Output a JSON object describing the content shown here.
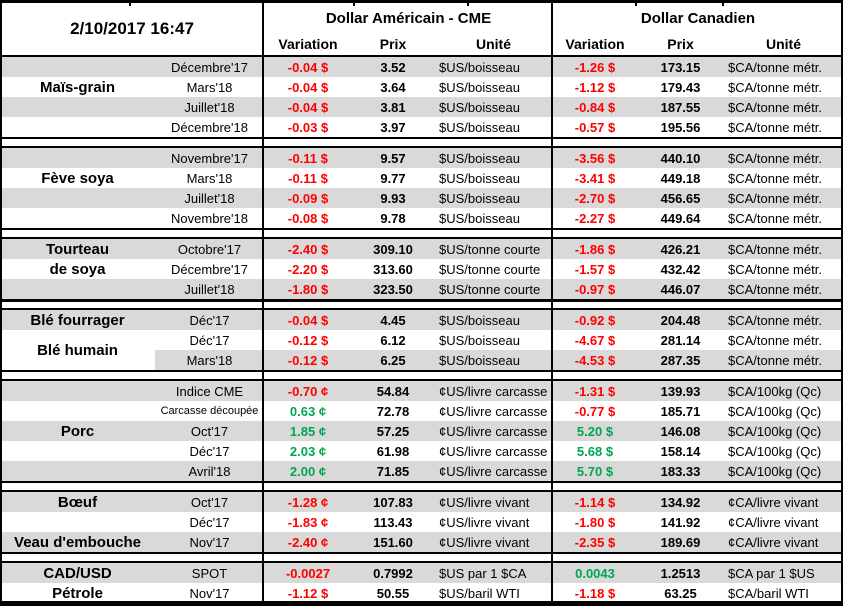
{
  "meta": {
    "timestamp": "2/10/2017 16:47"
  },
  "colors": {
    "negative": "#FF0000",
    "positive": "#00A651",
    "row_stripe": "#D9D9D9",
    "border": "#000000"
  },
  "header": {
    "us": {
      "title": "Dollar Américain - CME",
      "cols": [
        "Variation",
        "Prix",
        "Unité"
      ]
    },
    "ca": {
      "title": "Dollar Canadien",
      "cols": [
        "Variation",
        "Prix",
        "Unité"
      ]
    }
  },
  "groups": [
    {
      "name": "mais-grain",
      "rows": [
        {
          "cat": "",
          "contract": "Décembre'17",
          "us": {
            "var": "-0.04 $",
            "prix": "3.52",
            "unit": "$US/boisseau"
          },
          "ca": {
            "var": "-1.26 $",
            "prix": "173.15",
            "unit": "$CA/tonne métr."
          }
        },
        {
          "cat": "Maïs-grain",
          "contract": "Mars'18",
          "us": {
            "var": "-0.04 $",
            "prix": "3.64",
            "unit": "$US/boisseau"
          },
          "ca": {
            "var": "-1.12 $",
            "prix": "179.43",
            "unit": "$CA/tonne métr."
          }
        },
        {
          "cat": "",
          "contract": "Juillet'18",
          "us": {
            "var": "-0.04 $",
            "prix": "3.81",
            "unit": "$US/boisseau"
          },
          "ca": {
            "var": "-0.84 $",
            "prix": "187.55",
            "unit": "$CA/tonne métr."
          }
        },
        {
          "cat": "",
          "contract": "Décembre'18",
          "us": {
            "var": "-0.03 $",
            "prix": "3.97",
            "unit": "$US/boisseau"
          },
          "ca": {
            "var": "-0.57 $",
            "prix": "195.56",
            "unit": "$CA/tonne métr."
          }
        }
      ]
    },
    {
      "name": "feve-soya",
      "rows": [
        {
          "cat": "",
          "contract": "Novembre'17",
          "us": {
            "var": "-0.11 $",
            "prix": "9.57",
            "unit": "$US/boisseau"
          },
          "ca": {
            "var": "-3.56 $",
            "prix": "440.10",
            "unit": "$CA/tonne métr."
          }
        },
        {
          "cat": "Fève soya",
          "contract": "Mars'18",
          "us": {
            "var": "-0.11 $",
            "prix": "9.77",
            "unit": "$US/boisseau"
          },
          "ca": {
            "var": "-3.41 $",
            "prix": "449.18",
            "unit": "$CA/tonne métr."
          }
        },
        {
          "cat": "",
          "contract": "Juillet'18",
          "us": {
            "var": "-0.09 $",
            "prix": "9.93",
            "unit": "$US/boisseau"
          },
          "ca": {
            "var": "-2.70 $",
            "prix": "456.65",
            "unit": "$CA/tonne métr."
          }
        },
        {
          "cat": "",
          "contract": "Novembre'18",
          "us": {
            "var": "-0.08 $",
            "prix": "9.78",
            "unit": "$US/boisseau"
          },
          "ca": {
            "var": "-2.27 $",
            "prix": "449.64",
            "unit": "$CA/tonne métr."
          }
        }
      ]
    },
    {
      "name": "tourteau-de-soya",
      "rows": [
        {
          "cat": "Tourteau",
          "contract": "Octobre'17",
          "us": {
            "var": "-2.40 $",
            "prix": "309.10",
            "unit": "$US/tonne courte"
          },
          "ca": {
            "var": "-1.86 $",
            "prix": "426.21",
            "unit": "$CA/tonne métr."
          }
        },
        {
          "cat": "de soya",
          "contract": "Décembre'17",
          "us": {
            "var": "-2.20 $",
            "prix": "313.60",
            "unit": "$US/tonne courte"
          },
          "ca": {
            "var": "-1.57 $",
            "prix": "432.42",
            "unit": "$CA/tonne métr."
          }
        },
        {
          "cat": "",
          "contract": "Juillet'18",
          "us": {
            "var": "-1.80 $",
            "prix": "323.50",
            "unit": "$US/tonne courte"
          },
          "ca": {
            "var": "-0.97 $",
            "prix": "446.07",
            "unit": "$CA/tonne métr."
          }
        }
      ]
    },
    {
      "name": "ble",
      "merged_label": {
        "text": "Blé humain",
        "start_row": 1,
        "row_span": 2
      },
      "rows": [
        {
          "cat": "Blé fourrager",
          "contract": "Déc'17",
          "us": {
            "var": "-0.04 $",
            "prix": "4.45",
            "unit": "$US/boisseau"
          },
          "ca": {
            "var": "-0.92 $",
            "prix": "204.48",
            "unit": "$CA/tonne métr."
          }
        },
        {
          "cat": "",
          "contract": "Déc'17",
          "us": {
            "var": "-0.12 $",
            "prix": "6.12",
            "unit": "$US/boisseau"
          },
          "ca": {
            "var": "-4.67 $",
            "prix": "281.14",
            "unit": "$CA/tonne métr."
          }
        },
        {
          "cat": "",
          "contract": "Mars'18",
          "us": {
            "var": "-0.12 $",
            "prix": "6.25",
            "unit": "$US/boisseau"
          },
          "ca": {
            "var": "-4.53 $",
            "prix": "287.35",
            "unit": "$CA/tonne métr."
          }
        }
      ]
    },
    {
      "name": "porc",
      "rows": [
        {
          "cat": "",
          "contract": "Indice CME",
          "us": {
            "var": "-0.70 ¢",
            "prix": "54.84",
            "unit": "¢US/livre carcasse"
          },
          "ca": {
            "var": "-1.31 $",
            "prix": "139.93",
            "unit": "$CA/100kg (Qc)"
          }
        },
        {
          "cat": "",
          "contract": "Carcasse découpée",
          "contract_small": true,
          "us": {
            "var": "0.63 ¢",
            "prix": "72.78",
            "unit": "¢US/livre carcasse"
          },
          "ca": {
            "var": "-0.77 $",
            "prix": "185.71",
            "unit": "$CA/100kg (Qc)"
          }
        },
        {
          "cat": "Porc",
          "contract": "Oct'17",
          "us": {
            "var": "1.85 ¢",
            "prix": "57.25",
            "unit": "¢US/livre carcasse"
          },
          "ca": {
            "var": "5.20 $",
            "prix": "146.08",
            "unit": "$CA/100kg (Qc)"
          }
        },
        {
          "cat": "",
          "contract": "Déc'17",
          "us": {
            "var": "2.03 ¢",
            "prix": "61.98",
            "unit": "¢US/livre carcasse"
          },
          "ca": {
            "var": "5.68 $",
            "prix": "158.14",
            "unit": "$CA/100kg (Qc)"
          }
        },
        {
          "cat": "",
          "contract": "Avril'18",
          "us": {
            "var": "2.00 ¢",
            "prix": "71.85",
            "unit": "¢US/livre carcasse"
          },
          "ca": {
            "var": "5.70 $",
            "prix": "183.33",
            "unit": "$CA/100kg (Qc)"
          }
        }
      ]
    },
    {
      "name": "boeuf-veau",
      "rows": [
        {
          "cat": "Bœuf",
          "contract": "Oct'17",
          "us": {
            "var": "-1.28 ¢",
            "prix": "107.83",
            "unit": "¢US/livre vivant"
          },
          "ca": {
            "var": "-1.14 $",
            "prix": "134.92",
            "unit": "¢CA/livre vivant"
          }
        },
        {
          "cat": "",
          "contract": "Déc'17",
          "us": {
            "var": "-1.83 ¢",
            "prix": "113.43",
            "unit": "¢US/livre vivant"
          },
          "ca": {
            "var": "-1.80 $",
            "prix": "141.92",
            "unit": "¢CA/livre vivant"
          }
        },
        {
          "cat": "Veau d'embouche",
          "contract": "Nov'17",
          "us": {
            "var": "-2.40 ¢",
            "prix": "151.60",
            "unit": "¢US/livre vivant"
          },
          "ca": {
            "var": "-2.35 $",
            "prix": "189.69",
            "unit": "¢CA/livre vivant"
          }
        }
      ]
    },
    {
      "name": "cad-usd-petrole",
      "rows": [
        {
          "cat": "CAD/USD",
          "contract": "SPOT",
          "us": {
            "var": "-0.0027",
            "prix": "0.7992",
            "unit": "$US par 1 $CA"
          },
          "ca": {
            "var": "0.0043",
            "prix": "1.2513",
            "unit": "$CA par 1 $US"
          }
        },
        {
          "cat": "Pétrole",
          "contract": "Nov'17",
          "us": {
            "var": "-1.12 $",
            "prix": "50.55",
            "unit": "$US/baril WTI"
          },
          "ca": {
            "var": "-1.18 $",
            "prix": "63.25",
            "unit": "$CA/baril WTI"
          }
        }
      ]
    }
  ]
}
